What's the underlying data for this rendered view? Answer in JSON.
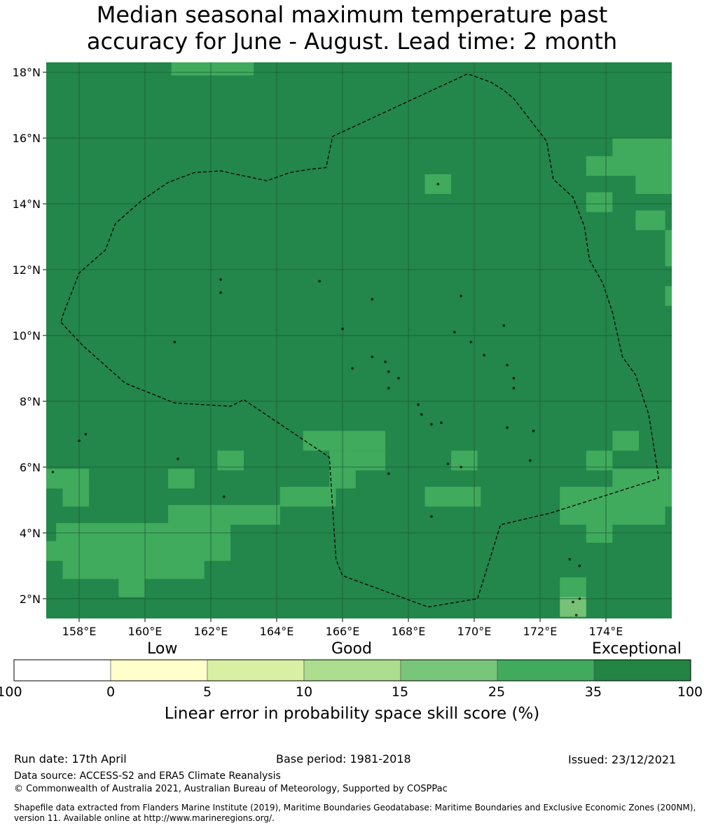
{
  "title": "Median seasonal maximum temperature past\naccuracy for June - August. Lead time: 2 month",
  "map": {
    "lon_range": [
      157,
      176
    ],
    "lat_range": [
      1.4,
      18.3
    ],
    "x_ticks": [
      "158°E",
      "160°E",
      "162°E",
      "164°E",
      "166°E",
      "168°E",
      "170°E",
      "172°E",
      "174°E"
    ],
    "x_tick_values": [
      158,
      160,
      162,
      164,
      166,
      168,
      170,
      172,
      174
    ],
    "y_ticks": [
      "18°N",
      "16°N",
      "14°N",
      "12°N",
      "10°N",
      "8°N",
      "6°N",
      "4°N",
      "2°N"
    ],
    "y_tick_values": [
      18,
      16,
      14,
      12,
      10,
      8,
      6,
      4,
      2
    ],
    "base_color": "#23864a",
    "cell_color": "#40aa5d",
    "light_cell_color": "#76c176",
    "gridline_color": "#1a5e34",
    "eez_boundary": [
      [
        157.45,
        10.4
      ],
      [
        158.1,
        9.7
      ],
      [
        159.4,
        8.55
      ],
      [
        160.9,
        7.95
      ],
      [
        162.6,
        7.85
      ],
      [
        163.0,
        8.05
      ],
      [
        165.6,
        6.3
      ],
      [
        165.8,
        3.2
      ],
      [
        166.0,
        2.7
      ],
      [
        168.6,
        1.75
      ],
      [
        170.1,
        2.0
      ],
      [
        170.8,
        4.25
      ],
      [
        172.3,
        4.6
      ],
      [
        175.6,
        5.65
      ],
      [
        175.55,
        6.0
      ],
      [
        175.3,
        7.6
      ],
      [
        174.9,
        8.8
      ],
      [
        174.5,
        9.35
      ],
      [
        174.2,
        10.7
      ],
      [
        173.9,
        11.6
      ],
      [
        173.5,
        12.3
      ],
      [
        173.35,
        13.3
      ],
      [
        173.0,
        14.2
      ],
      [
        172.4,
        14.75
      ],
      [
        172.2,
        15.9
      ],
      [
        171.2,
        17.2
      ],
      [
        170.9,
        17.45
      ],
      [
        170.5,
        17.7
      ],
      [
        169.8,
        17.95
      ],
      [
        165.7,
        16.05
      ],
      [
        165.5,
        15.1
      ],
      [
        165.0,
        15.05
      ],
      [
        164.4,
        14.95
      ],
      [
        163.7,
        14.7
      ],
      [
        162.3,
        15.0
      ],
      [
        161.5,
        14.95
      ],
      [
        160.7,
        14.65
      ],
      [
        159.9,
        14.1
      ],
      [
        159.1,
        13.4
      ],
      [
        158.8,
        12.6
      ],
      [
        158.0,
        11.9
      ],
      [
        157.5,
        10.6
      ]
    ],
    "skill_cells_25_35": [
      [
        160.8,
        17.9,
        2.5,
        0.6
      ],
      [
        174.2,
        15.4,
        1.8,
        0.6
      ],
      [
        173.4,
        14.85,
        2.6,
        0.6
      ],
      [
        174.9,
        14.3,
        1.1,
        0.6
      ],
      [
        168.5,
        14.3,
        0.8,
        0.6
      ],
      [
        173.4,
        13.75,
        0.8,
        0.6
      ],
      [
        174.9,
        13.2,
        0.9,
        0.6
      ],
      [
        175.8,
        12.1,
        0.2,
        1.1
      ],
      [
        175.8,
        10.9,
        0.2,
        0.6
      ],
      [
        164.8,
        6.5,
        2.5,
        0.6
      ],
      [
        165.6,
        5.9,
        1.7,
        0.6
      ],
      [
        165.6,
        5.35,
        0.8,
        0.6
      ],
      [
        162.2,
        5.9,
        0.8,
        0.6
      ],
      [
        169.3,
        5.9,
        0.8,
        0.6
      ],
      [
        160.7,
        5.35,
        0.8,
        0.6
      ],
      [
        157.0,
        5.35,
        1.3,
        0.6
      ],
      [
        157.5,
        4.8,
        0.8,
        0.6
      ],
      [
        164.1,
        4.8,
        1.7,
        0.6
      ],
      [
        168.5,
        4.8,
        1.7,
        0.6
      ],
      [
        160.7,
        4.25,
        3.4,
        0.6
      ],
      [
        157.3,
        3.7,
        5.3,
        0.6
      ],
      [
        157.0,
        3.15,
        5.6,
        0.6
      ],
      [
        157.5,
        2.6,
        4.3,
        0.6
      ],
      [
        159.2,
        2.05,
        0.8,
        0.6
      ],
      [
        174.2,
        6.5,
        0.8,
        0.6
      ],
      [
        173.4,
        5.9,
        0.8,
        0.6
      ],
      [
        174.2,
        5.35,
        1.8,
        0.6
      ],
      [
        172.6,
        4.8,
        3.4,
        0.6
      ],
      [
        172.6,
        4.25,
        3.2,
        0.6
      ],
      [
        173.4,
        3.7,
        0.8,
        0.6
      ],
      [
        172.6,
        2.05,
        0.8,
        0.6
      ]
    ],
    "skill_cells_15_25": [
      [
        172.6,
        1.45,
        0.8,
        0.6
      ]
    ],
    "islands": [
      [
        158.2,
        7.0
      ],
      [
        158.0,
        6.8
      ],
      [
        162.4,
        5.1
      ],
      [
        161.0,
        6.25
      ],
      [
        160.9,
        9.8
      ],
      [
        162.3,
        11.7
      ],
      [
        162.3,
        11.3
      ],
      [
        165.3,
        11.65
      ],
      [
        166.9,
        11.1
      ],
      [
        166.0,
        10.2
      ],
      [
        166.3,
        9.0
      ],
      [
        166.9,
        9.35
      ],
      [
        167.3,
        9.2
      ],
      [
        167.4,
        8.9
      ],
      [
        167.7,
        8.7
      ],
      [
        167.4,
        8.4
      ],
      [
        168.3,
        7.9
      ],
      [
        168.4,
        7.6
      ],
      [
        168.7,
        7.3
      ],
      [
        169.0,
        7.35
      ],
      [
        170.3,
        9.4
      ],
      [
        171.0,
        9.1
      ],
      [
        171.2,
        8.7
      ],
      [
        171.2,
        8.4
      ],
      [
        171.0,
        7.2
      ],
      [
        171.8,
        7.1
      ],
      [
        171.7,
        6.2
      ],
      [
        169.4,
        10.1
      ],
      [
        169.9,
        9.8
      ],
      [
        169.6,
        11.2
      ],
      [
        170.9,
        10.3
      ],
      [
        168.9,
        14.6
      ],
      [
        167.4,
        5.8
      ],
      [
        169.6,
        6.0
      ],
      [
        169.2,
        6.1
      ],
      [
        168.7,
        4.5
      ],
      [
        172.9,
        3.2
      ],
      [
        173.2,
        3.0
      ],
      [
        173.2,
        2.0
      ],
      [
        173.0,
        1.9
      ],
      [
        173.1,
        1.5
      ],
      [
        157.2,
        5.85
      ]
    ]
  },
  "colorbar": {
    "categories": [
      "Low",
      "Good",
      "Exceptional"
    ],
    "ticks": [
      "-100",
      "0",
      "5",
      "10",
      "15",
      "25",
      "35",
      "100"
    ],
    "colors": [
      "#ffffff",
      "#ffffcc",
      "#d9f0a3",
      "#addd8e",
      "#78c679",
      "#41ab5d",
      "#238443"
    ],
    "label": "Linear error in probability space skill score (%)"
  },
  "footer": {
    "run_date": "Run date: 17th April",
    "base_period": "Base period: 1981-2018",
    "issued": "Issued: 23/12/2021",
    "data_source": "Data source: ACCESS-S2 and ERA5 Climate Reanalysis",
    "copyright": "© Commonwealth of Australia 2021, Australian Bureau of Meteorology, Supported by COSPPac",
    "shapefile": "Shapefile data extracted from Flanders Marine Institute (2019), Maritime Boundaries Geodatabase: Maritime Boundaries and Exclusive Economic Zones (200NM), version 11. Available online at http://www.marineregions.org/."
  }
}
